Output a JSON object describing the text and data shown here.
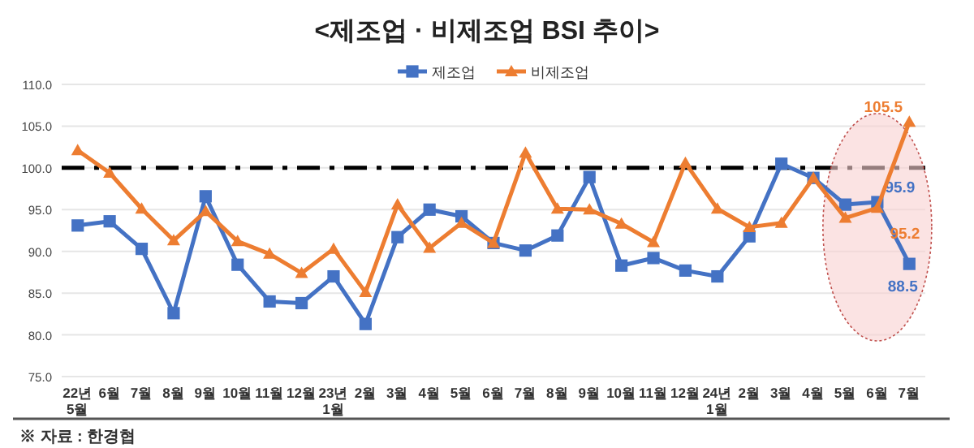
{
  "chart_data": {
    "type": "line",
    "title": "<제조업 · 비제조업 BSI 추이>",
    "categories": [
      "22년\n5월",
      "6월",
      "7월",
      "8월",
      "9월",
      "10월",
      "11월",
      "12월",
      "23년\n1월",
      "2월",
      "3월",
      "4월",
      "5월",
      "6월",
      "7월",
      "8월",
      "9월",
      "10월",
      "11월",
      "12월",
      "24년\n1월",
      "2월",
      "3월",
      "4월",
      "5월",
      "6월",
      "7월"
    ],
    "series": [
      {
        "name": "제조업",
        "color": "#4472c4",
        "marker": "square",
        "values": [
          93.1,
          93.6,
          90.3,
          82.6,
          96.6,
          88.4,
          84.0,
          83.8,
          87.0,
          81.3,
          91.7,
          95.0,
          94.2,
          91.0,
          90.1,
          91.9,
          98.9,
          88.3,
          89.2,
          87.7,
          87.0,
          91.8,
          100.5,
          98.8,
          95.6,
          95.9,
          88.5
        ],
        "value_labels": [
          null,
          null,
          null,
          null,
          null,
          null,
          null,
          null,
          null,
          null,
          null,
          null,
          null,
          null,
          null,
          null,
          null,
          null,
          null,
          null,
          null,
          null,
          null,
          null,
          null,
          "95.9",
          "88.5"
        ]
      },
      {
        "name": "비제조업",
        "color": "#ed7d31",
        "marker": "triangle",
        "values": [
          102.1,
          99.4,
          95.1,
          91.3,
          94.8,
          91.2,
          89.7,
          87.4,
          90.3,
          85.1,
          95.6,
          90.4,
          93.4,
          91.0,
          101.8,
          95.1,
          95.0,
          93.3,
          91.1,
          100.6,
          95.1,
          92.9,
          93.4,
          98.8,
          94.0,
          95.2,
          105.5
        ],
        "value_labels": [
          null,
          null,
          null,
          null,
          null,
          null,
          null,
          null,
          null,
          null,
          null,
          null,
          null,
          null,
          null,
          null,
          null,
          null,
          null,
          null,
          null,
          null,
          null,
          null,
          null,
          "95.2",
          "105.5"
        ]
      }
    ],
    "ylim": [
      75,
      110
    ],
    "yticks": [
      {
        "value": 75,
        "label": "75.0"
      },
      {
        "value": 80,
        "label": "80.0"
      },
      {
        "value": 85,
        "label": "85.0"
      },
      {
        "value": 90,
        "label": "90.0"
      },
      {
        "value": 95,
        "label": "95.0"
      },
      {
        "value": 100,
        "label": "100.0"
      },
      {
        "value": 105,
        "label": "105.0"
      },
      {
        "value": 110,
        "label": "110.0"
      }
    ],
    "grid": "y",
    "legend": "top",
    "line_style": "solid",
    "ref_lines": [
      {
        "axis": "y",
        "value": 100,
        "color": "#000000",
        "line_style": "dashdot"
      }
    ],
    "annotations": [
      "※ 자료 : 한경협"
    ]
  }
}
